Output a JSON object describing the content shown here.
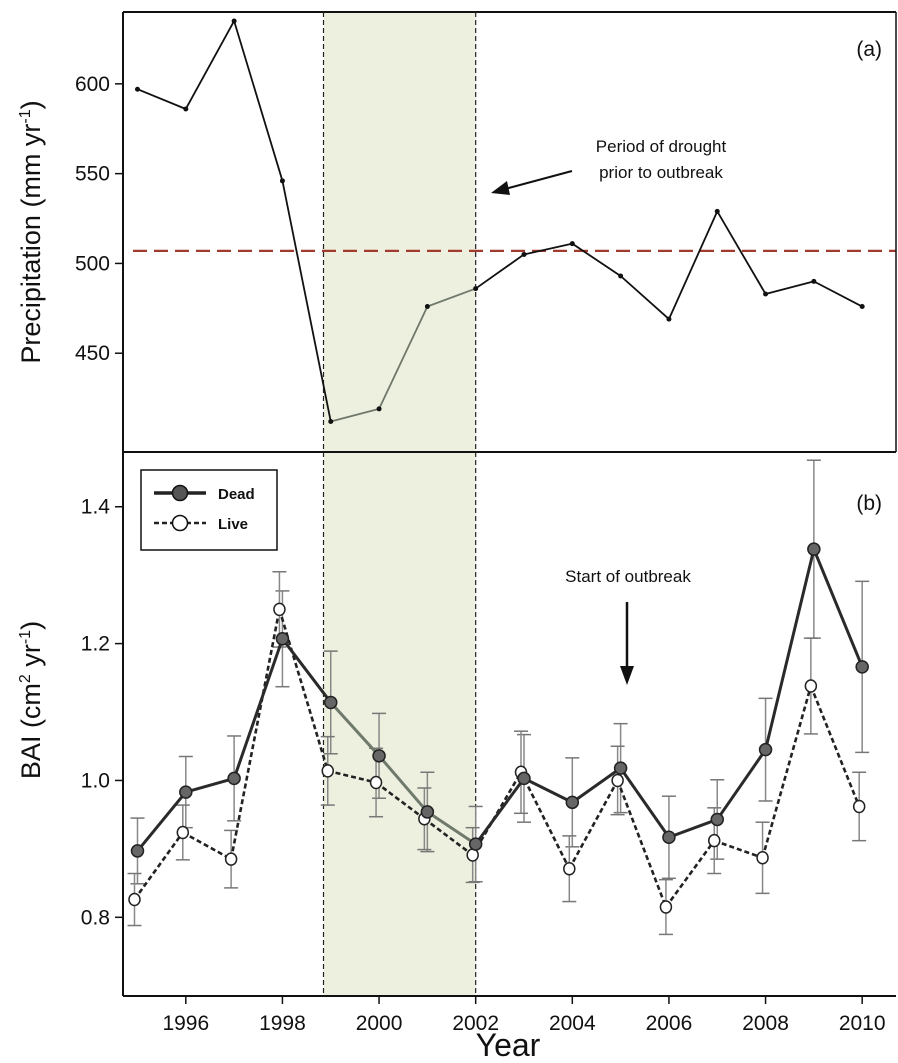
{
  "chart_data": [
    {
      "panel": "(a)",
      "type": "line",
      "ylabel_main": "Precipitation (mm yr",
      "ylabel_sup": "-1",
      "ylabel_end": ")",
      "xlim": [
        1994.7,
        2010.7
      ],
      "ylim": [
        395,
        640
      ],
      "ytick_values": [
        450,
        500,
        550,
        600
      ],
      "reference_line": {
        "y": 507,
        "color": "#a33a2e"
      },
      "annotation": [
        "Period of drought",
        "prior to outbreak"
      ],
      "series": [
        {
          "x": [
            1995,
            1996,
            1997,
            1998,
            1999,
            2000,
            2001,
            2002,
            2003,
            2004,
            2005,
            2006,
            2007,
            2008,
            2009,
            2010
          ],
          "values": [
            597,
            586,
            635,
            546,
            412,
            419,
            476,
            486,
            505,
            511,
            493,
            469,
            529,
            483,
            490,
            476
          ]
        }
      ]
    },
    {
      "panel": "(b)",
      "type": "line",
      "ylabel_main": "BAI (cm",
      "ylabel_sup": "2",
      "ylabel_mid": " yr",
      "ylabel_sup2": "-1",
      "ylabel_end": ")",
      "xlabel": "Year",
      "xlim": [
        1994.7,
        2010.7
      ],
      "ylim": [
        0.685,
        1.48
      ],
      "ytick_values": [
        0.8,
        1.0,
        1.2,
        1.4
      ],
      "xtick_values": [
        1996,
        1998,
        2000,
        2002,
        2004,
        2006,
        2008,
        2010
      ],
      "annotation": "Start of outbreak",
      "legend": {
        "position": "top-left"
      },
      "series": [
        {
          "name": "Dead",
          "x": [
            1995,
            1996,
            1997,
            1998,
            1999,
            2000,
            2001,
            2002,
            2003,
            2004,
            2005,
            2006,
            2007,
            2008,
            2009,
            2010
          ],
          "values": [
            0.897,
            0.983,
            1.003,
            1.207,
            1.114,
            1.036,
            0.954,
            0.907,
            1.003,
            0.968,
            1.018,
            0.917,
            0.943,
            1.045,
            1.338,
            1.166
          ],
          "err": [
            0.048,
            0.052,
            0.062,
            0.07,
            0.075,
            0.062,
            0.058,
            0.055,
            0.064,
            0.065,
            0.065,
            0.06,
            0.058,
            0.075,
            0.13,
            0.125
          ],
          "color": "#333333"
        },
        {
          "name": "Live",
          "x": [
            1995,
            1996,
            1997,
            1998,
            1999,
            2000,
            2001,
            2002,
            2003,
            2004,
            2005,
            2006,
            2007,
            2008,
            2009,
            2010
          ],
          "values": [
            0.826,
            0.924,
            0.885,
            1.25,
            1.014,
            0.997,
            0.944,
            0.891,
            1.012,
            0.871,
            1.0,
            0.815,
            0.912,
            0.887,
            1.138,
            0.962
          ],
          "err": [
            0.038,
            0.04,
            0.042,
            0.055,
            0.05,
            0.05,
            0.045,
            0.04,
            0.06,
            0.048,
            0.05,
            0.04,
            0.048,
            0.052,
            0.07,
            0.05
          ],
          "color": "#333333"
        }
      ]
    }
  ],
  "drought_period": {
    "start": 1998.85,
    "end": 2002.0,
    "color": "#eef0df"
  },
  "legend_items": [
    "Dead",
    "Live"
  ]
}
